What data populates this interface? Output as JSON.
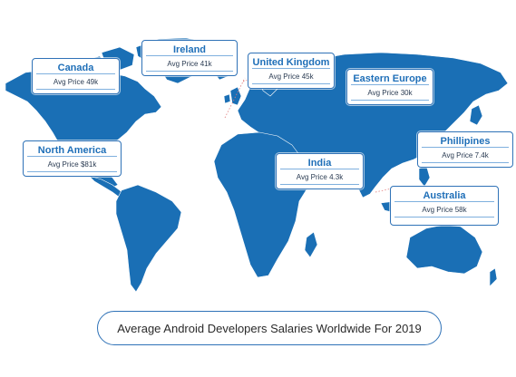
{
  "title": "Average Android Developers Salaries Worldwide For 2019",
  "colors": {
    "land": "#1a6fb5",
    "border_lines": "#ffffff",
    "accent": "#2f72b7",
    "label_text": "#1f6fb8"
  },
  "callouts": [
    {
      "id": "ireland",
      "name": "Ireland",
      "price": "Avg Price 41k"
    },
    {
      "id": "canada",
      "name": "Canada",
      "price": "Avg Price 49k"
    },
    {
      "id": "united-kingdom",
      "name": "United Kingdom",
      "price": "Avg Price 45k"
    },
    {
      "id": "eastern-europe",
      "name": "Eastern Europe",
      "price": "Avg Price 30k"
    },
    {
      "id": "north-america",
      "name": "North America",
      "price": "Avg Price $81k"
    },
    {
      "id": "india",
      "name": "India",
      "price": "Avg Price 4.3k"
    },
    {
      "id": "philippines",
      "name": "Phillipines",
      "price": "Avg Price 7.4k"
    },
    {
      "id": "australia",
      "name": "Australia",
      "price": "Avg Price 58k"
    }
  ]
}
